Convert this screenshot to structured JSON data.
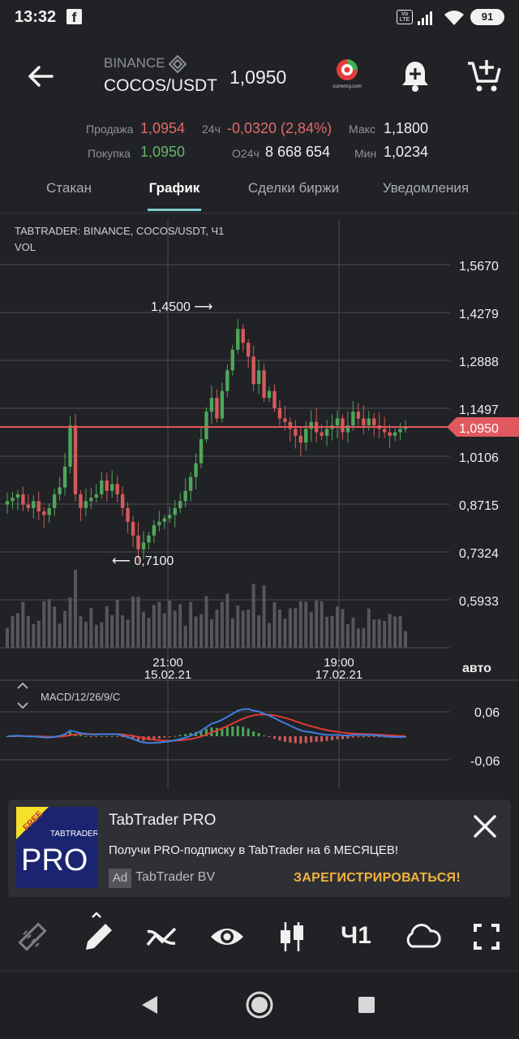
{
  "status_bar": {
    "time": "13:32",
    "fb": "f",
    "volte": "Vo LTE",
    "battery": "91",
    "icons": [
      "facebook-icon",
      "volte-icon",
      "signal-icon",
      "wifi-icon",
      "battery-icon"
    ]
  },
  "header": {
    "exchange": "BINANCE",
    "pair": "COCOS/USDT",
    "price": "1,0950",
    "logo_text": "currency.com",
    "icons": [
      "back-arrow-icon",
      "binance-diamond-icon",
      "currency-com-logo",
      "add-alert-bell-icon",
      "add-to-cart-icon"
    ]
  },
  "stats": {
    "sell_label": "Продажа",
    "sell_value": "1,0954",
    "buy_label": "Покупка",
    "buy_value": "1,0950",
    "change_label": "24ч",
    "change_value": "-0,0320 (2,84%)",
    "volume_label": "О24ч",
    "volume_value": "8 668 654",
    "max_label": "Макс",
    "max_value": "1,1800",
    "min_label": "Мин",
    "min_value": "1,0234"
  },
  "tabs": [
    {
      "label": "Стакан",
      "active": false
    },
    {
      "label": "График",
      "active": true
    },
    {
      "label": "Сделки биржи",
      "active": false
    },
    {
      "label": "Уведомления",
      "active": false
    }
  ],
  "chart": {
    "source": "TABTRADER: BINANCE, COCOS/USDT, Ч1",
    "volume_label": "VOL",
    "y_ticks": [
      "1,5670",
      "1,4279",
      "1,2888",
      "1,1497",
      "1,0106",
      "0,8715",
      "0,7324",
      "0,5933"
    ],
    "current_price": "1,0950",
    "high_marker": "1,4500 ⟶",
    "low_marker": "⟵ 0,7100",
    "x_ticks": [
      {
        "time": "21:00",
        "date": "15.02.21"
      },
      {
        "time": "19:00",
        "date": "17.02.21"
      }
    ],
    "scale_mode": "авто",
    "macd_label": "MACD/12/26/9/C",
    "macd_ticks": [
      "0,06",
      "-0,06"
    ],
    "colors": {
      "up": "#4fa65a",
      "down": "#d45a5a",
      "price_line": "#e0595e",
      "macd": "#3f7fe0",
      "signal": "#e0392f",
      "grid": "#4a4c52"
    }
  },
  "chart_data": {
    "type": "candlestick",
    "title": "TABTRADER: BINANCE, COCOS/USDT, Ч1",
    "ylim": [
      0.55,
      1.62
    ],
    "high": 1.45,
    "low": 0.71,
    "last": 1.095,
    "close_series": [
      0.88,
      0.89,
      0.9,
      0.87,
      0.86,
      0.88,
      0.85,
      0.84,
      0.86,
      0.9,
      0.92,
      0.98,
      1.1,
      0.9,
      0.86,
      0.88,
      0.89,
      0.9,
      0.94,
      0.91,
      0.93,
      0.9,
      0.86,
      0.82,
      0.78,
      0.74,
      0.76,
      0.78,
      0.81,
      0.82,
      0.83,
      0.84,
      0.86,
      0.88,
      0.91,
      0.95,
      0.99,
      1.06,
      1.14,
      1.18,
      1.12,
      1.2,
      1.26,
      1.32,
      1.38,
      1.34,
      1.3,
      1.22,
      1.26,
      1.18,
      1.2,
      1.15,
      1.12,
      1.11,
      1.09,
      1.07,
      1.05,
      1.09,
      1.11,
      1.08,
      1.07,
      1.09,
      1.1,
      1.12,
      1.08,
      1.1,
      1.14,
      1.12,
      1.1,
      1.12,
      1.1,
      1.09,
      1.08,
      1.07,
      1.08,
      1.09,
      1.095
    ]
  },
  "ad": {
    "title": "TabTrader PRO",
    "text": "Получи PRO-подписку в TabTrader на 6 МЕСЯЦЕВ!",
    "badge": "Ad",
    "advertiser": "TabTrader BV",
    "cta": "ЗАРЕГИСТРИРОВАТЬСЯ!",
    "image_free": "FREE",
    "image_brand": "TABTRADER",
    "image_pro": "PRO"
  },
  "toolbar": {
    "timeframe": "Ч1",
    "icons": [
      "ruler-icon",
      "pencil-icon",
      "indicators-icon",
      "eye-icon",
      "candlestick-icon",
      "timeframe",
      "cloud-icon",
      "fullscreen-icon"
    ]
  },
  "nav": {
    "icons": [
      "nav-back-icon",
      "nav-home-icon",
      "nav-recents-icon"
    ]
  }
}
